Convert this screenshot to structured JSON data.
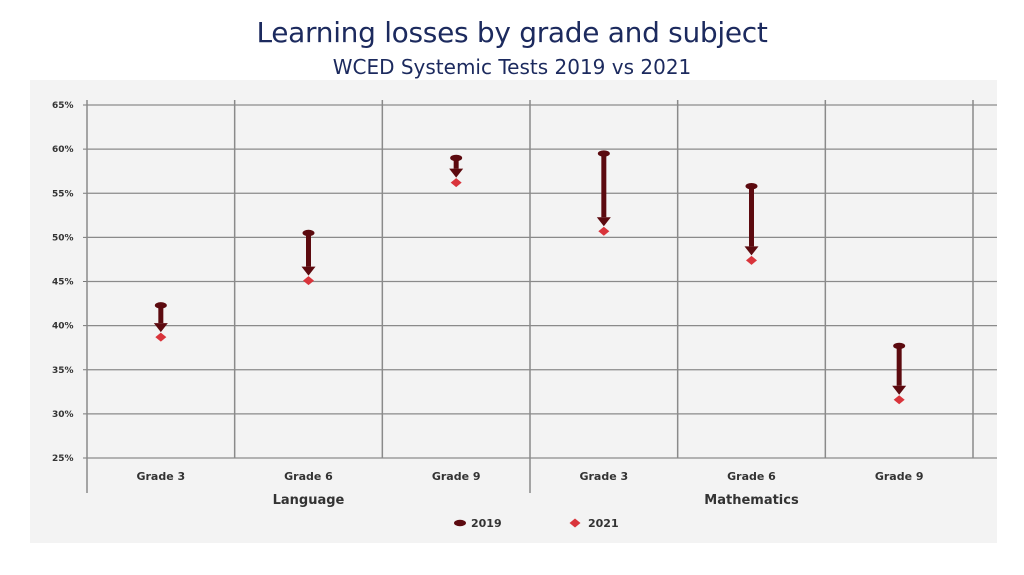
{
  "chart_data": {
    "type": "scatter",
    "title": "Learning losses by grade and subject",
    "subtitle": "WCED Systemic Tests 2019 vs 2021",
    "y_ticks": [
      "25%",
      "30%",
      "35%",
      "40%",
      "45%",
      "50%",
      "55%",
      "60%",
      "65%"
    ],
    "ylim": [
      25,
      65
    ],
    "categories": [
      "Grade 3",
      "Grade 6",
      "Grade 9",
      "Grade 3",
      "Grade 6",
      "Grade 9"
    ],
    "groups": [
      {
        "label": "Language",
        "span": [
          0,
          2
        ]
      },
      {
        "label": "Mathematics",
        "span": [
          3,
          5
        ]
      }
    ],
    "series": [
      {
        "name": "2019",
        "values": [
          42.3,
          50.5,
          59.0,
          59.5,
          55.8,
          37.7
        ],
        "color": "#5c0a0f",
        "marker": "circle"
      },
      {
        "name": "2021",
        "values": [
          38.7,
          45.1,
          56.2,
          50.7,
          47.4,
          31.6
        ],
        "color": "#d9343b",
        "marker": "diamond"
      }
    ],
    "grid": true,
    "legend": "bottom-center"
  }
}
